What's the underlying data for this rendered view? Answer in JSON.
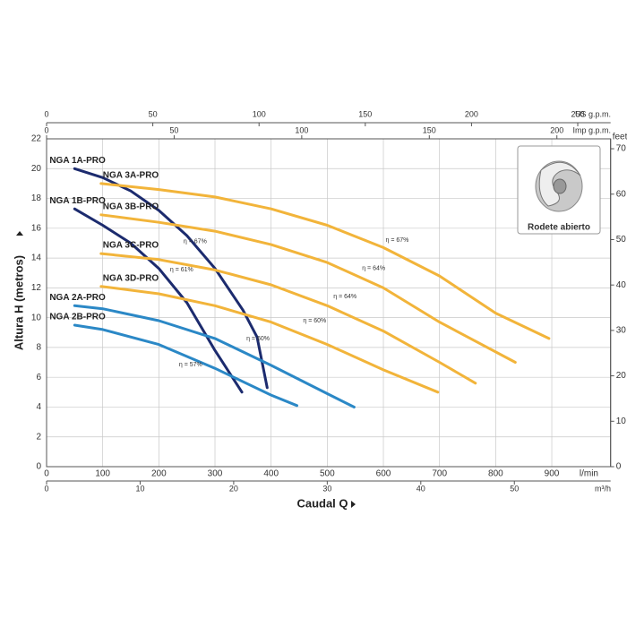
{
  "chart_data": {
    "type": "line",
    "xlabel": "Caudal Q",
    "xunit": "l/min",
    "ylabel": "Altura H (metros)",
    "xlim": [
      0,
      1000
    ],
    "xticks": [
      0,
      100,
      200,
      300,
      400,
      500,
      600,
      700,
      800,
      900
    ],
    "ylim": [
      0,
      22
    ],
    "yticks": [
      0,
      2,
      4,
      6,
      8,
      10,
      12,
      14,
      16,
      18,
      20,
      22
    ],
    "y2label": "feet",
    "y2lim": [
      0,
      72.18
    ],
    "y2ticks": [
      0,
      10,
      20,
      30,
      40,
      50,
      60,
      70
    ],
    "extra_x_axes": [
      {
        "label": "US g.p.m.",
        "side": "top",
        "lim": [
          0,
          264.2
        ],
        "ticks": [
          0,
          50,
          100,
          150,
          200,
          250
        ]
      },
      {
        "label": "Imp g.p.m.",
        "side": "top",
        "lim": [
          0,
          220
        ],
        "ticks": [
          0,
          50,
          100,
          150,
          200
        ]
      },
      {
        "label": "m³/h",
        "side": "bottom",
        "lim": [
          0,
          60
        ],
        "ticks": [
          0,
          10,
          20,
          30,
          40,
          50
        ]
      }
    ],
    "grid": true,
    "series": [
      {
        "name": "NGA 1A-PRO",
        "color": "#1c2b6e",
        "x": [
          50,
          100,
          150,
          200,
          250,
          300,
          350,
          375,
          393
        ],
        "values": [
          20,
          19.4,
          18.5,
          17.2,
          15.5,
          13.3,
          10.5,
          8.7,
          5.3
        ]
      },
      {
        "name": "NGA 1B-PRO",
        "color": "#1c2b6e",
        "x": [
          50,
          100,
          150,
          200,
          250,
          300,
          348
        ],
        "values": [
          17.3,
          16.2,
          15,
          13.3,
          11,
          7.8,
          5
        ]
      },
      {
        "name": "NGA 2A-PRO",
        "color": "#2b88c6",
        "x": [
          50,
          100,
          200,
          300,
          400,
          500,
          548
        ],
        "values": [
          10.8,
          10.6,
          9.8,
          8.6,
          6.8,
          4.9,
          4
        ]
      },
      {
        "name": "NGA 2B-PRO",
        "color": "#2b88c6",
        "x": [
          50,
          100,
          200,
          300,
          400,
          446
        ],
        "values": [
          9.5,
          9.2,
          8.2,
          6.6,
          4.8,
          4.1
        ]
      },
      {
        "name": "NGA 3A-PRO",
        "color": "#f2b43a",
        "x": [
          97,
          200,
          300,
          400,
          500,
          600,
          700,
          800,
          895
        ],
        "values": [
          19,
          18.6,
          18.1,
          17.3,
          16.2,
          14.7,
          12.8,
          10.3,
          8.6
        ]
      },
      {
        "name": "NGA 3B-PRO",
        "color": "#f2b43a",
        "x": [
          97,
          200,
          300,
          400,
          500,
          600,
          700,
          835
        ],
        "values": [
          16.9,
          16.4,
          15.8,
          14.9,
          13.7,
          12,
          9.7,
          7
        ]
      },
      {
        "name": "NGA 3C-PRO",
        "color": "#f2b43a",
        "x": [
          97,
          200,
          300,
          400,
          500,
          600,
          700,
          764
        ],
        "values": [
          14.3,
          13.9,
          13.2,
          12.2,
          10.8,
          9.1,
          7,
          5.6
        ]
      },
      {
        "name": "NGA 3D-PRO",
        "color": "#f2b43a",
        "x": [
          97,
          200,
          300,
          400,
          500,
          600,
          697
        ],
        "values": [
          12.1,
          11.6,
          10.8,
          9.7,
          8.2,
          6.5,
          5
        ]
      }
    ],
    "annotations": [
      {
        "text": "η = 67%",
        "x": 244,
        "y": 15.1
      },
      {
        "text": "η = 61%",
        "x": 220,
        "y": 13.2
      },
      {
        "text": "η = 60%",
        "x": 356,
        "y": 8.6
      },
      {
        "text": "η = 57%",
        "x": 236,
        "y": 6.85
      },
      {
        "text": "η = 67%",
        "x": 604,
        "y": 15.2
      },
      {
        "text": "η = 64%",
        "x": 562,
        "y": 13.3
      },
      {
        "text": "η = 64%",
        "x": 511,
        "y": 11.4
      },
      {
        "text": "η = 60%",
        "x": 457,
        "y": 9.8
      }
    ],
    "inset_caption": "Rodete abierto"
  }
}
